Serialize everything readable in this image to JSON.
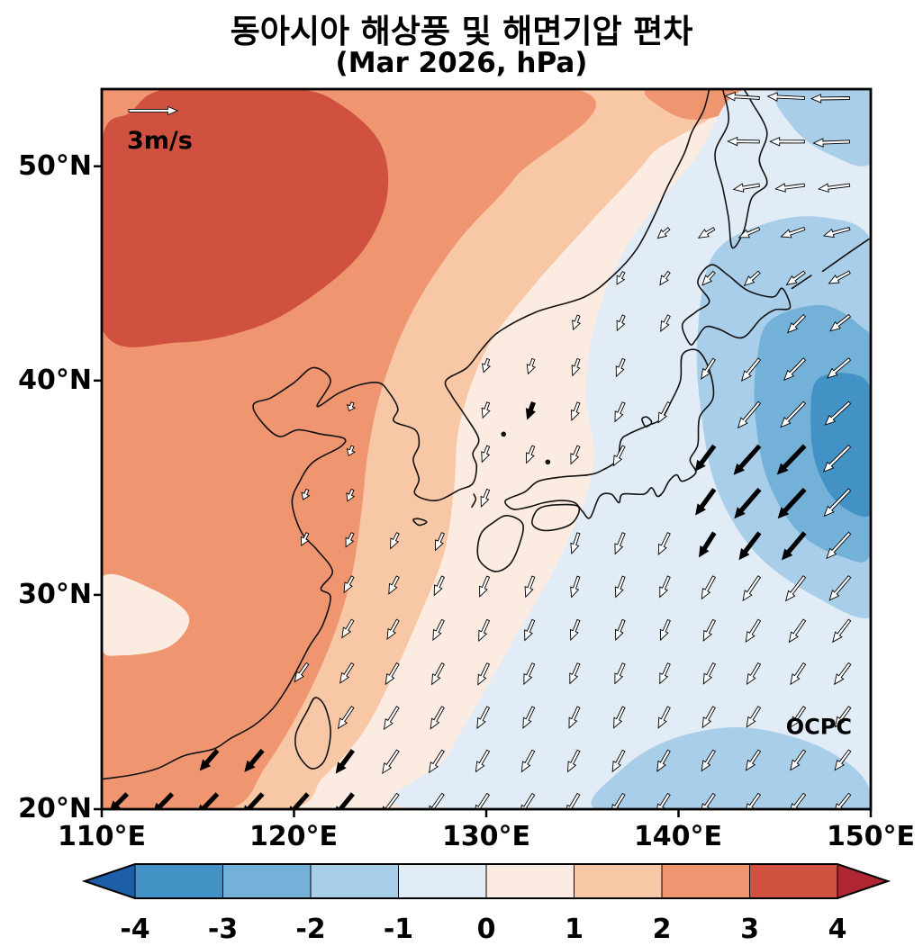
{
  "title": {
    "line1": "동아시아 해상풍 및 해면기압 편차",
    "line2": "(Mar 2026, hPa)"
  },
  "axes": {
    "x_ticks": [
      "110°E",
      "120°E",
      "130°E",
      "140°E",
      "150°E"
    ],
    "y_ticks": [
      "50°N",
      "40°N",
      "30°N",
      "20°N"
    ]
  },
  "map_labels": {
    "ref_arrow": "3m/s",
    "watermark": "OCPC"
  },
  "palette": {
    "m4": "#1c5fa8",
    "m34": "#4292c6",
    "m23": "#74b1d8",
    "m12": "#a9cee9",
    "m01": "#e1ecf6",
    "p01": "#fcebe0",
    "p12": "#f8c7a5",
    "p23": "#ef9671",
    "p34": "#d0513f",
    "p4": "#b02633",
    "coast": "#111111",
    "arrow_white": "#ffffff",
    "arrow_black": "#000000"
  },
  "colorbar": {
    "tick_labels": [
      "-4",
      "-3",
      "-2",
      "-1",
      "0",
      "1",
      "2",
      "3",
      "4"
    ],
    "segment_colors": [
      "#4292c6",
      "#74b1d8",
      "#a9cee9",
      "#e1ecf6",
      "#fcebe0",
      "#f8c7a5",
      "#ef9671",
      "#d0513f"
    ],
    "end_colors": [
      "#1c5fa8",
      "#b02633"
    ]
  },
  "chart_data": {
    "type": "heatmap",
    "title": "동아시아 해상풍 및 해면기압 편차",
    "subtitle": "(Mar 2026, hPa)",
    "field": "sea level pressure anomaly with surface wind anomaly vectors",
    "units": "hPa",
    "lon_range": [
      110,
      150
    ],
    "lat_range": [
      20,
      53.6
    ],
    "colorbar_levels": [
      -4,
      -3,
      -2,
      -1,
      0,
      1,
      2,
      3,
      4
    ],
    "pressure_anomaly_centers": [
      {
        "sign": "positive",
        "lon": 117,
        "lat": 49,
        "value_hPa": 3.5
      },
      {
        "sign": "negative",
        "lon": 149,
        "lat": 36.5,
        "value_hPa": -3.5
      }
    ],
    "contour_polygons": [
      {
        "level": "1to2",
        "color": "p12",
        "points": [
          [
            110,
            20
          ],
          [
            119.5,
            20
          ],
          [
            121.5,
            21.5
          ],
          [
            123.5,
            23.5
          ],
          [
            125,
            26
          ],
          [
            126.5,
            29
          ],
          [
            127.8,
            32
          ],
          [
            128.3,
            35
          ],
          [
            128.6,
            38
          ],
          [
            130,
            41.5
          ],
          [
            132.5,
            44.5
          ],
          [
            135.5,
            47.5
          ],
          [
            138.5,
            50.5
          ],
          [
            140.5,
            53.6
          ],
          [
            110,
            53.6
          ]
        ]
      },
      {
        "level": "2to3",
        "color": "p23",
        "points": [
          [
            110,
            20
          ],
          [
            116.5,
            20
          ],
          [
            118.5,
            22
          ],
          [
            120.5,
            25
          ],
          [
            122,
            28
          ],
          [
            123,
            31
          ],
          [
            123.5,
            34
          ],
          [
            123.8,
            36.5
          ],
          [
            124.5,
            39.5
          ],
          [
            126,
            43
          ],
          [
            128.5,
            46.5
          ],
          [
            131.5,
            49.5
          ],
          [
            134.5,
            53.6
          ],
          [
            110,
            53.6
          ]
        ]
      },
      {
        "level": "3to4",
        "color": "p34",
        "points": [
          [
            110,
            42.5
          ],
          [
            114,
            41.8
          ],
          [
            118,
            42.5
          ],
          [
            121,
            44
          ],
          [
            123.5,
            46
          ],
          [
            124.8,
            48.5
          ],
          [
            124.5,
            51
          ],
          [
            122.5,
            52.8
          ],
          [
            120,
            53.6
          ],
          [
            113.5,
            53.6
          ],
          [
            111.5,
            52.5
          ],
          [
            110,
            51
          ]
        ]
      },
      {
        "level": "2to3",
        "color": "p23",
        "points": [
          [
            138.5,
            53.6
          ],
          [
            139.2,
            52.7
          ],
          [
            140.6,
            52.2
          ],
          [
            142.2,
            52.4
          ],
          [
            143.2,
            53
          ],
          [
            143.5,
            53.6
          ]
        ]
      },
      {
        "level": "0to1",
        "color": "p01",
        "points": [
          [
            110,
            30.8
          ],
          [
            112.5,
            30.3
          ],
          [
            114.5,
            29
          ],
          [
            113.5,
            27.6
          ],
          [
            111,
            27.2
          ],
          [
            110,
            27.6
          ]
        ]
      },
      {
        "level": "-1to0",
        "color": "m01",
        "points": [
          [
            143.5,
            53.6
          ],
          [
            141,
            50.5
          ],
          [
            137.5,
            46.5
          ],
          [
            135.8,
            43
          ],
          [
            135.2,
            39.5
          ],
          [
            135.6,
            36
          ],
          [
            134,
            32
          ],
          [
            131.2,
            27.5
          ],
          [
            128,
            22.5
          ],
          [
            126.5,
            20
          ],
          [
            150,
            20
          ],
          [
            150,
            53.6
          ]
        ]
      },
      {
        "level": "-2to-1",
        "color": "m12",
        "points": [
          [
            141.8,
            45.8
          ],
          [
            144.5,
            47.3
          ],
          [
            147.5,
            47.6
          ],
          [
            150,
            46.5
          ],
          [
            150,
            42
          ],
          [
            150,
            37
          ],
          [
            150,
            32
          ],
          [
            150,
            29
          ],
          [
            147,
            30
          ],
          [
            144,
            32
          ],
          [
            142,
            35
          ],
          [
            141.2,
            38.5
          ],
          [
            141,
            42
          ]
        ]
      },
      {
        "level": "-2to-1",
        "color": "m12",
        "points": [
          [
            135.8,
            20
          ],
          [
            137,
            21.8
          ],
          [
            139.5,
            23.2
          ],
          [
            143,
            23.8
          ],
          [
            146.5,
            23.2
          ],
          [
            149,
            22
          ],
          [
            150,
            20.8
          ],
          [
            150,
            20
          ],
          [
            143,
            20
          ]
        ]
      },
      {
        "level": "-2to-1",
        "color": "m12",
        "points": [
          [
            145.2,
            53.6
          ],
          [
            146,
            51.8
          ],
          [
            147.8,
            50.6
          ],
          [
            150,
            50.2
          ],
          [
            150,
            53.6
          ]
        ]
      },
      {
        "level": "-3to-2",
        "color": "m23",
        "points": [
          [
            144.8,
            42.8
          ],
          [
            147.5,
            43.5
          ],
          [
            149.5,
            42.5
          ],
          [
            150,
            41.5
          ],
          [
            150,
            36.5
          ],
          [
            150,
            32
          ],
          [
            148.5,
            31.8
          ],
          [
            146.2,
            33
          ],
          [
            144.6,
            35.5
          ],
          [
            144,
            38.5
          ],
          [
            144.1,
            41
          ]
        ]
      },
      {
        "level": "-4to-3",
        "color": "m34",
        "points": [
          [
            147.2,
            40
          ],
          [
            149,
            40.3
          ],
          [
            150,
            39.5
          ],
          [
            150,
            36.5
          ],
          [
            150,
            33.8
          ],
          [
            148.3,
            34.3
          ],
          [
            147.2,
            36
          ],
          [
            146.9,
            38
          ]
        ]
      }
    ],
    "wind": {
      "units": "m/s",
      "ref_vector": 3,
      "lon_nodes": [
        110,
        115,
        120,
        125,
        130,
        135,
        140,
        145,
        150
      ],
      "lat_nodes": [
        20,
        24,
        28,
        32,
        36,
        40,
        44,
        48,
        52
      ],
      "u": [
        [
          -1.0,
          -1.3,
          -1.3,
          -1.1,
          -0.9,
          -0.8,
          -0.8,
          -0.9,
          -1.0
        ],
        [
          -0.8,
          -0.9,
          -1.0,
          -0.9,
          -0.7,
          -0.6,
          -0.7,
          -0.8,
          -0.9
        ],
        [
          -0.5,
          -0.6,
          -0.7,
          -0.7,
          -0.6,
          -0.5,
          -0.5,
          -0.8,
          -1.0
        ],
        [
          -0.3,
          -0.4,
          -0.4,
          -0.5,
          -0.5,
          -0.4,
          -0.6,
          -1.2,
          -1.4
        ],
        [
          -0.2,
          -0.2,
          -0.2,
          -0.3,
          -0.4,
          -0.5,
          -0.9,
          -1.8,
          -1.6
        ],
        [
          0,
          0,
          -0.2,
          -0.2,
          -0.3,
          -0.4,
          -0.6,
          -1.3,
          -1.5
        ],
        [
          0,
          0,
          0,
          0,
          -0.2,
          -0.3,
          -0.5,
          -0.8,
          -1.2
        ],
        [
          0,
          0,
          0,
          0,
          0,
          -0.3,
          -0.8,
          -1.5,
          -1.8
        ],
        [
          0,
          0,
          0,
          0,
          0,
          0,
          -1.5,
          -2.2,
          -2.4
        ]
      ],
      "v": [
        [
          -1.0,
          -1.3,
          -1.4,
          -1.4,
          -1.3,
          -1.3,
          -1.2,
          -1.2,
          -1.2
        ],
        [
          -0.9,
          -1.1,
          -1.3,
          -1.4,
          -1.3,
          -1.3,
          -1.3,
          -1.2,
          -1.2
        ],
        [
          -0.8,
          -1.0,
          -1.0,
          -1.2,
          -1.3,
          -1.2,
          -1.2,
          -1.3,
          -1.3
        ],
        [
          -0.6,
          -0.7,
          -0.8,
          -1.0,
          -1.2,
          -1.3,
          -1.3,
          -1.6,
          -1.5
        ],
        [
          -0.4,
          -0.5,
          -0.5,
          -0.7,
          -1.0,
          -1.1,
          -1.4,
          -1.9,
          -1.6
        ],
        [
          0,
          0,
          -0.4,
          -0.5,
          -0.9,
          -1.1,
          -1.2,
          -1.5,
          -1.2
        ],
        [
          0,
          0,
          0,
          0,
          -0.5,
          -0.8,
          -0.9,
          -1.0,
          -0.8
        ],
        [
          0,
          0,
          0,
          0,
          0,
          -0.5,
          -0.5,
          -0.4,
          -0.3
        ],
        [
          0,
          0,
          0,
          0,
          0,
          0,
          -0.2,
          0.2,
          -0.1
        ]
      ],
      "grid": {
        "lon_start": 111.3,
        "lon_step": 2.35,
        "cols": 17,
        "lat_start": 20.7,
        "lat_step": 2.03,
        "rows": 17
      },
      "significant_regions": [
        {
          "lon": [
            110.8,
            124.5
          ],
          "lat": [
            20,
            23.1
          ]
        },
        {
          "lon": [
            141,
            146.9
          ],
          "lat": [
            32.5,
            38.7
          ]
        },
        {
          "lon": [
            131.8,
            133.4
          ],
          "lat": [
            38.3,
            40.2
          ]
        }
      ]
    },
    "annotations": [
      "3m/s",
      "OCPC"
    ]
  }
}
